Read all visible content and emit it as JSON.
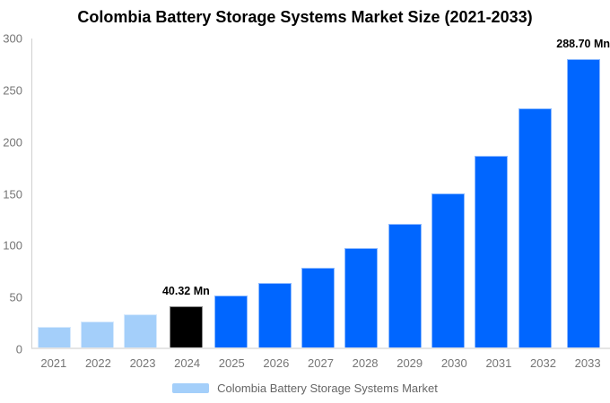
{
  "title": "Colombia Battery Storage Systems Market Size (2021-2033)",
  "legend": {
    "label": "Colombia Battery Storage Systems Market"
  },
  "colors": {
    "historical": "#A4CFFA",
    "base-year": "#000000",
    "forecast": "#0066FF",
    "axis-line": "#cfcfcf",
    "baseline": "#e5e5e5",
    "tick-text": "#757575",
    "legend-text": "#666666",
    "title-text": "#000000",
    "legend-swatch": "#A4CFFA"
  },
  "chart_data": {
    "type": "bar",
    "title": "Colombia Battery Storage Systems Market Size (2021-2033)",
    "categories": [
      "2021",
      "2022",
      "2023",
      "2024",
      "2025",
      "2026",
      "2027",
      "2028",
      "2029",
      "2030",
      "2031",
      "2032",
      "2033"
    ],
    "values": [
      20.0,
      25.3,
      31.8,
      40.32,
      50.18,
      62.45,
      77.72,
      96.73,
      120.38,
      149.82,
      186.45,
      232.04,
      288.7
    ],
    "unit": "Mn",
    "xlabel": "",
    "ylabel": "",
    "ylim": [
      0,
      300
    ],
    "yticks": [
      0,
      50,
      100,
      150,
      200,
      250,
      300
    ],
    "grid": false,
    "legend_position": "bottom",
    "bar_styles": [
      "historical",
      "historical",
      "historical",
      "base-year",
      "forecast",
      "forecast",
      "forecast",
      "forecast",
      "forecast",
      "forecast",
      "forecast",
      "forecast",
      "forecast"
    ],
    "annotations": [
      {
        "category": "2024",
        "text": "40.32 Mn"
      },
      {
        "category": "2033",
        "text": "288.70 Mn"
      }
    ]
  }
}
